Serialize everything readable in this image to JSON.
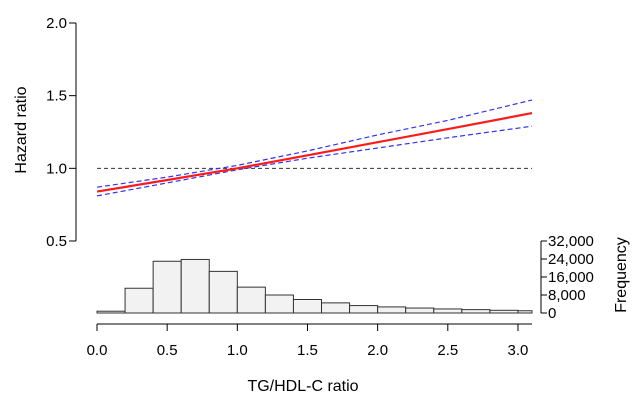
{
  "chart_data": {
    "type": "line",
    "xlabel": "TG/HDL-C ratio",
    "ylabel": "Hazard ratio",
    "secondary_ylabel": "Frequency",
    "xlim": [
      0,
      3.1
    ],
    "ylim": [
      0.5,
      2.0
    ],
    "x_ticks": [
      0.0,
      0.5,
      1.0,
      1.5,
      2.0,
      2.5,
      3.0
    ],
    "x_tick_labels": [
      "0.0",
      "0.5",
      "1.0",
      "1.5",
      "2.0",
      "2.5",
      "3.0"
    ],
    "y_ticks": [
      0.5,
      1.0,
      1.5,
      2.0
    ],
    "y_tick_labels": [
      "0.5",
      "1.0",
      "1.5",
      "2.0"
    ],
    "reference_line": {
      "y": 1.0,
      "style": "dashed",
      "color": "#333333"
    },
    "series": [
      {
        "role": "estimate",
        "color": "#ff1a1a",
        "style": "solid",
        "x": [
          0.0,
          0.5,
          1.0,
          1.5,
          2.0,
          2.5,
          3.1
        ],
        "y": [
          0.84,
          0.92,
          1.0,
          1.09,
          1.18,
          1.27,
          1.38
        ]
      },
      {
        "role": "upper confidence limit",
        "color": "#3333ee",
        "style": "dashed",
        "x": [
          0.0,
          0.5,
          1.0,
          1.5,
          2.0,
          2.5,
          3.1
        ],
        "y": [
          0.87,
          0.94,
          1.02,
          1.12,
          1.23,
          1.33,
          1.47
        ]
      },
      {
        "role": "lower confidence limit",
        "color": "#3333ee",
        "style": "dashed",
        "x": [
          0.0,
          0.5,
          1.0,
          1.5,
          2.0,
          2.5,
          3.1
        ],
        "y": [
          0.81,
          0.9,
          0.99,
          1.07,
          1.14,
          1.21,
          1.29
        ]
      }
    ],
    "histogram": {
      "bin_width": 0.2,
      "bin_starts": [
        0.0,
        0.2,
        0.4,
        0.6,
        0.8,
        1.0,
        1.2,
        1.4,
        1.6,
        1.8,
        2.0,
        2.2,
        2.4,
        2.6,
        2.8,
        3.0
      ],
      "counts": [
        800,
        11000,
        23000,
        23800,
        18500,
        11500,
        8000,
        6000,
        4500,
        3300,
        2700,
        2200,
        1800,
        1500,
        1200,
        1000
      ],
      "ylim": [
        0,
        32000
      ],
      "y_ticks": [
        0,
        8000,
        16000,
        24000,
        32000
      ],
      "y_tick_labels": [
        "0",
        "8,000",
        "16,000",
        "24,000",
        "32,000"
      ],
      "fill": "#f2f2f2",
      "stroke": "#333333"
    }
  }
}
